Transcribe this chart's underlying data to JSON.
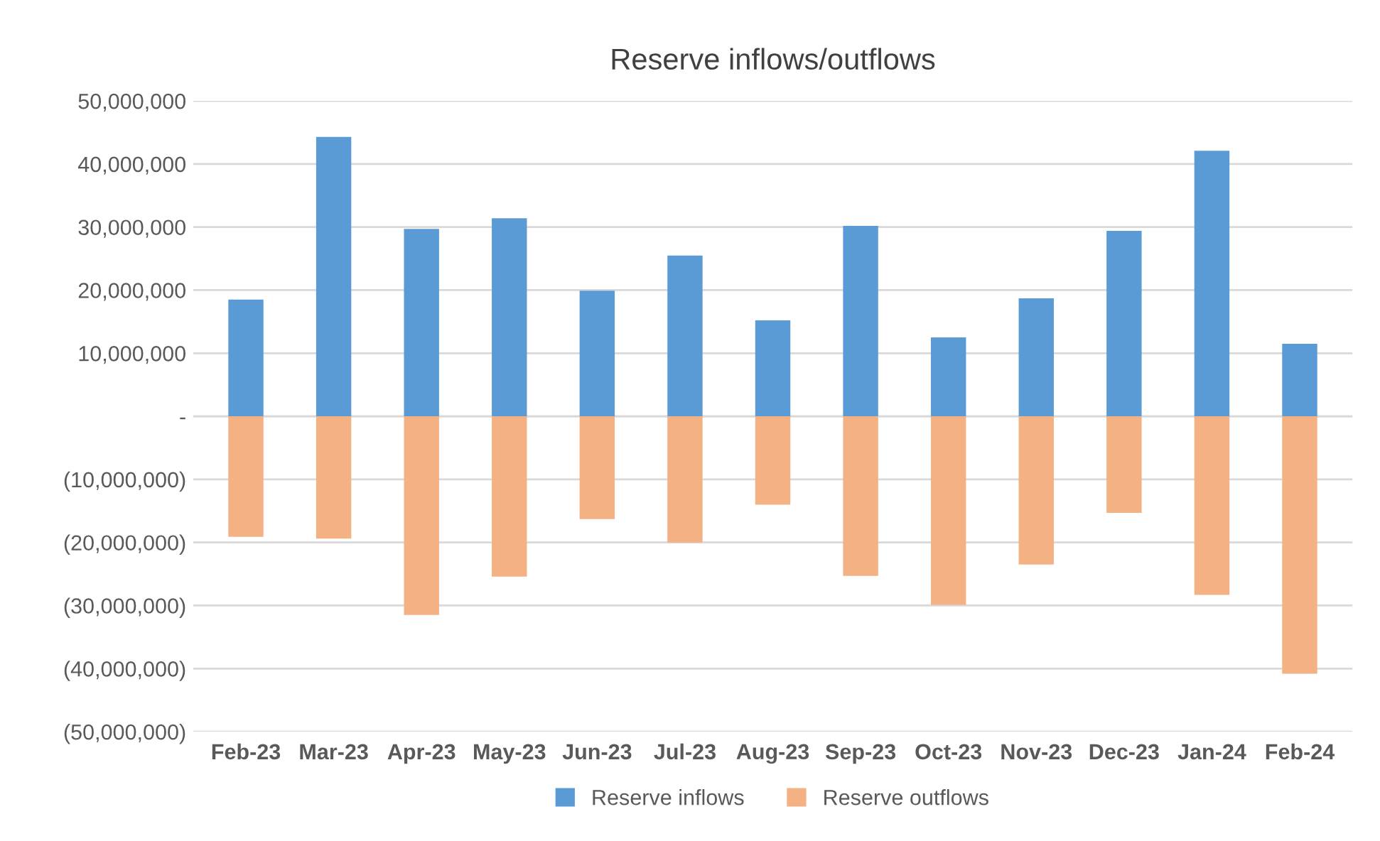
{
  "chart_data": {
    "type": "bar",
    "title": "Reserve inflows/outflows",
    "stacked": true,
    "categories": [
      "Feb-23",
      "Mar-23",
      "Apr-23",
      "May-23",
      "Jun-23",
      "Jul-23",
      "Aug-23",
      "Sep-23",
      "Oct-23",
      "Nov-23",
      "Dec-23",
      "Jan-24",
      "Feb-24"
    ],
    "series": [
      {
        "name": "Reserve inflows",
        "color": "#5b9bd5",
        "values": [
          18500000,
          44300000,
          29700000,
          31400000,
          19900000,
          25500000,
          15200000,
          30200000,
          12500000,
          18700000,
          29400000,
          42100000,
          11500000
        ]
      },
      {
        "name": "Reserve outflows",
        "color": "#f4b183",
        "values": [
          -19100000,
          -19400000,
          -31500000,
          -25400000,
          -16300000,
          -20000000,
          -14000000,
          -25300000,
          -29900000,
          -23500000,
          -15300000,
          -28300000,
          -40800000
        ]
      }
    ],
    "ylim": [
      -50000000,
      50000000
    ],
    "yticks": [
      {
        "value": -50000000,
        "label": "(50,000,000)"
      },
      {
        "value": -40000000,
        "label": "(40,000,000)"
      },
      {
        "value": -30000000,
        "label": "(30,000,000)"
      },
      {
        "value": -20000000,
        "label": "(20,000,000)"
      },
      {
        "value": -10000000,
        "label": "(10,000,000)"
      },
      {
        "value": 0,
        "label": "-"
      },
      {
        "value": 10000000,
        "label": "10,000,000"
      },
      {
        "value": 20000000,
        "label": "20,000,000"
      },
      {
        "value": 30000000,
        "label": "30,000,000"
      },
      {
        "value": 40000000,
        "label": "40,000,000"
      },
      {
        "value": 50000000,
        "label": "50,000,000"
      }
    ],
    "grid": "y",
    "legend": "bottom"
  }
}
